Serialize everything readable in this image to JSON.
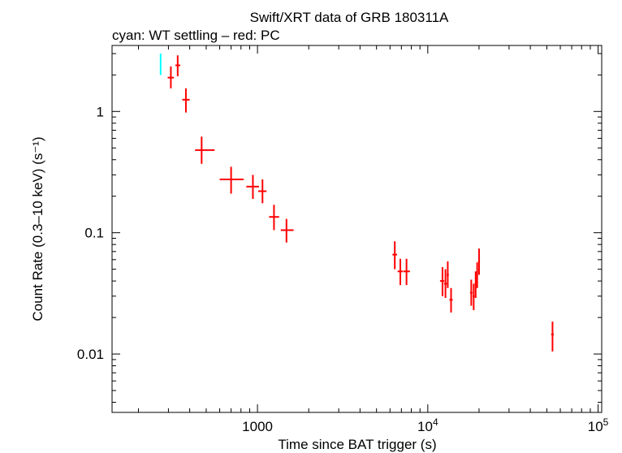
{
  "chart_data": {
    "type": "scatter",
    "title": "Swift/XRT data of GRB 180311A",
    "subtitle": "cyan: WT settling – red: PC",
    "xlabel": "Time since BAT trigger (s)",
    "ylabel": "Count Rate (0.3–10 keV) (s⁻¹)",
    "xscale": "log",
    "yscale": "log",
    "xlim": [
      140,
      105000
    ],
    "ylim": [
      0.0033,
      3.5
    ],
    "x_ticks": [
      {
        "value": 1000,
        "label": "1000"
      },
      {
        "value": 10000,
        "label_base": "10",
        "label_exp": "4"
      },
      {
        "value": 100000,
        "label_base": "10",
        "label_exp": "5"
      }
    ],
    "y_ticks": [
      {
        "value": 1,
        "label": "1"
      },
      {
        "value": 0.1,
        "label": "0.1"
      },
      {
        "value": 0.01,
        "label": "0.01"
      }
    ],
    "series": [
      {
        "name": "WT settling",
        "color": "#00ffff",
        "points": [
          {
            "x": 270,
            "xlo": 268,
            "xhi": 272,
            "y": 2.4,
            "ylo": 2.0,
            "yhi": 3.0
          }
        ]
      },
      {
        "name": "PC",
        "color": "#ff0000",
        "points": [
          {
            "x": 310,
            "xlo": 297,
            "xhi": 323,
            "y": 1.9,
            "ylo": 1.55,
            "yhi": 2.35
          },
          {
            "x": 340,
            "xlo": 330,
            "xhi": 352,
            "y": 2.4,
            "ylo": 1.95,
            "yhi": 2.9
          },
          {
            "x": 380,
            "xlo": 362,
            "xhi": 400,
            "y": 1.25,
            "ylo": 0.98,
            "yhi": 1.55
          },
          {
            "x": 470,
            "xlo": 430,
            "xhi": 560,
            "y": 0.48,
            "ylo": 0.37,
            "yhi": 0.62
          },
          {
            "x": 700,
            "xlo": 600,
            "xhi": 830,
            "y": 0.275,
            "ylo": 0.21,
            "yhi": 0.35
          },
          {
            "x": 940,
            "xlo": 860,
            "xhi": 1020,
            "y": 0.24,
            "ylo": 0.19,
            "yhi": 0.3
          },
          {
            "x": 1070,
            "xlo": 1010,
            "xhi": 1130,
            "y": 0.22,
            "ylo": 0.175,
            "yhi": 0.275
          },
          {
            "x": 1250,
            "xlo": 1170,
            "xhi": 1340,
            "y": 0.135,
            "ylo": 0.105,
            "yhi": 0.17
          },
          {
            "x": 1480,
            "xlo": 1370,
            "xhi": 1630,
            "y": 0.105,
            "ylo": 0.083,
            "yhi": 0.13
          },
          {
            "x": 6400,
            "xlo": 6200,
            "xhi": 6600,
            "y": 0.066,
            "ylo": 0.05,
            "yhi": 0.085
          },
          {
            "x": 6900,
            "xlo": 6650,
            "xhi": 7150,
            "y": 0.048,
            "ylo": 0.037,
            "yhi": 0.061
          },
          {
            "x": 7500,
            "xlo": 7200,
            "xhi": 7850,
            "y": 0.048,
            "ylo": 0.037,
            "yhi": 0.061
          },
          {
            "x": 12200,
            "xlo": 11800,
            "xhi": 12500,
            "y": 0.04,
            "ylo": 0.03,
            "yhi": 0.052
          },
          {
            "x": 12700,
            "xlo": 12450,
            "xhi": 12950,
            "y": 0.038,
            "ylo": 0.029,
            "yhi": 0.05
          },
          {
            "x": 13100,
            "xlo": 12900,
            "xhi": 13300,
            "y": 0.045,
            "ylo": 0.035,
            "yhi": 0.058
          },
          {
            "x": 13700,
            "xlo": 13400,
            "xhi": 14000,
            "y": 0.028,
            "ylo": 0.022,
            "yhi": 0.035
          },
          {
            "x": 18000,
            "xlo": 17700,
            "xhi": 18300,
            "y": 0.032,
            "ylo": 0.025,
            "yhi": 0.041
          },
          {
            "x": 18600,
            "xlo": 18350,
            "xhi": 18850,
            "y": 0.03,
            "ylo": 0.023,
            "yhi": 0.038
          },
          {
            "x": 19100,
            "xlo": 18900,
            "xhi": 19300,
            "y": 0.038,
            "ylo": 0.029,
            "yhi": 0.048
          },
          {
            "x": 19500,
            "xlo": 19300,
            "xhi": 19700,
            "y": 0.045,
            "ylo": 0.035,
            "yhi": 0.057
          },
          {
            "x": 20000,
            "xlo": 19750,
            "xhi": 20250,
            "y": 0.058,
            "ylo": 0.045,
            "yhi": 0.074
          },
          {
            "x": 54000,
            "xlo": 53000,
            "xhi": 55000,
            "y": 0.0145,
            "ylo": 0.0105,
            "yhi": 0.0185
          }
        ]
      }
    ]
  }
}
